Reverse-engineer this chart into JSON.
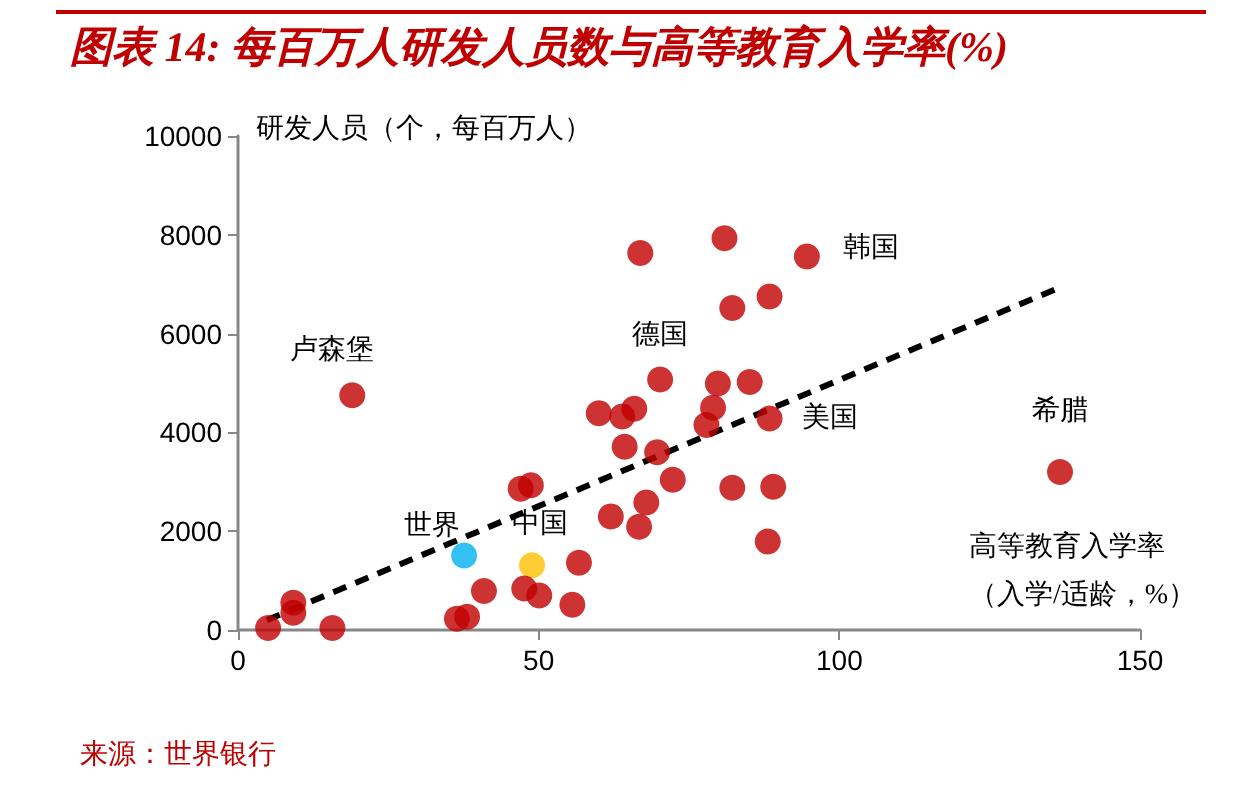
{
  "chart_data": {
    "type": "scatter",
    "title": "图表 14: 每百万人研发人员数与高等教育入学率(%)",
    "ylabel": "研发人员（个，每百万人）",
    "xlabel": "高等教育入学率（入学/适龄，%）",
    "annotations": [
      {
        "text": "卢森堡",
        "x": 19,
        "y": 4750
      },
      {
        "text": "世界",
        "x": 37.6,
        "y": 1510
      },
      {
        "text": "中国",
        "x": 48.9,
        "y": 1310
      },
      {
        "text": "德国",
        "x": 70.2,
        "y": 5070
      },
      {
        "text": "韩国",
        "x": 94.6,
        "y": 7560
      },
      {
        "text": "美国",
        "x": 88.4,
        "y": 4280
      },
      {
        "text": "希腊",
        "x": 136.7,
        "y": 3200
      },
      "来源：世界银行"
    ],
    "xlim": [
      0,
      150
    ],
    "xticks": [
      0,
      50,
      100,
      150
    ],
    "ylim": [
      0,
      10000
    ],
    "yticks": [
      0,
      2000,
      4000,
      6000,
      8000,
      10000
    ],
    "grid": false,
    "marker": "circle",
    "series": [
      {
        "color": "#c00000",
        "x": [
          5,
          9.2,
          9.2,
          15.7,
          19,
          37.6,
          48.9,
          36.4,
          38.1,
          40.9,
          47.6,
          50.1,
          55.6,
          56.7,
          47,
          48.7,
          60,
          63.9,
          65.9,
          64.3,
          62,
          66.7,
          67.9,
          69.7,
          70.2,
          66.9,
          72.3,
          80.9,
          94.6,
          82.2,
          88.4,
          79.8,
          85.1,
          79,
          77.9,
          88.4,
          82.2,
          89,
          88.1,
          136.7
        ],
        "values": [
          40,
          550,
          350,
          40,
          4750,
          1510,
          1310,
          230,
          270,
          790,
          840,
          700,
          510,
          1360,
          2860,
          2930,
          4390,
          4320,
          4480,
          3710,
          2300,
          2090,
          2580,
          3600,
          5070,
          7630,
          3040,
          7930,
          7560,
          6520,
          6750,
          4990,
          5020,
          4500,
          4150,
          4280,
          2880,
          2900,
          1790,
          3200
        ],
        "colors": [
          "#c00000",
          "#c00000",
          "#c00000",
          "#c00000",
          "#c00000",
          "#00b0f0",
          "#ffc000",
          "#c00000",
          "#c00000",
          "#c00000",
          "#c00000",
          "#c00000",
          "#c00000",
          "#c00000",
          "#c00000",
          "#c00000",
          "#c00000",
          "#c00000",
          "#c00000",
          "#c00000",
          "#c00000",
          "#c00000",
          "#c00000",
          "#c00000",
          "#c00000",
          "#c00000",
          "#c00000",
          "#c00000",
          "#c00000",
          "#c00000",
          "#c00000",
          "#c00000",
          "#c00000",
          "#c00000",
          "#c00000",
          "#c00000",
          "#c00000",
          "#c00000",
          "#c00000",
          "#c00000"
        ]
      },
      {
        "type": "line",
        "color": "#000000",
        "line_style": "dashed",
        "marker": "none",
        "x": [
          4.8,
          137
        ],
        "values": [
          200,
          6950
        ]
      }
    ]
  }
}
